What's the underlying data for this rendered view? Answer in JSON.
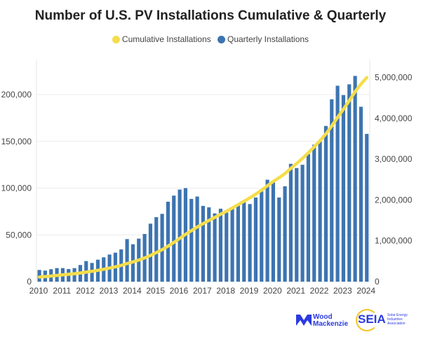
{
  "chart_data": {
    "type": "bar+line",
    "title": "Number of U.S. PV Installations Cumulative & Quarterly",
    "legend_position": "top",
    "grid": true,
    "x_tick_labels": [
      "2010",
      "2011",
      "2012",
      "2013",
      "2014",
      "2015",
      "2016",
      "2017",
      "2018",
      "2019",
      "2020",
      "2021",
      "2022",
      "2023",
      "2024"
    ],
    "quarters_start": "2010 Q1",
    "quarters_end": "2024 Q1",
    "left_axis": {
      "ylim": [
        0,
        237500
      ],
      "ticks": [
        0,
        50000,
        100000,
        150000,
        200000
      ],
      "tick_labels": [
        "0",
        "50,000",
        "100,000",
        "150,000",
        "200,000"
      ]
    },
    "right_axis": {
      "ylim": [
        0,
        5440000
      ],
      "ticks": [
        0,
        1000000,
        2000000,
        3000000,
        4000000,
        5000000
      ],
      "tick_labels": [
        "0",
        "1,000,000",
        "2,000,000",
        "3,000,000",
        "4,000,000",
        "5,000,000"
      ]
    },
    "series": [
      {
        "name": "Cumulative Installations",
        "type": "line",
        "axis": "right",
        "color": "#f5dd4b",
        "values": [
          112500,
          124300,
          137600,
          152100,
          166600,
          180100,
          194600,
          212400,
          234400,
          254400,
          277900,
          303900,
          332900,
          363900,
          398400,
          443900,
          483900,
          529900,
          580900,
          642900,
          711900,
          784400,
          869900,
          961900,
          1060400,
          1160400,
          1248900,
          1339900,
          1420900,
          1500400,
          1573400,
          1651400,
          1725400,
          1804400,
          1885900,
          1970900,
          2053900,
          2143900,
          2240400,
          2349400,
          2455900,
          2545900,
          2647900,
          2773900,
          2895400,
          3020400,
          3156900,
          3303400,
          3453400,
          3619900,
          3814900,
          4024400,
          4223900,
          4434900,
          4654900,
          4841900,
          4999900
        ]
      },
      {
        "name": "Quarterly Installations",
        "type": "bar",
        "axis": "left",
        "color": "#3d74b0",
        "values": [
          12500,
          11800,
          13300,
          14500,
          14500,
          13500,
          14500,
          17800,
          22000,
          20000,
          23500,
          26000,
          29000,
          31000,
          34500,
          45500,
          40000,
          46000,
          51000,
          62000,
          69000,
          72500,
          85500,
          92000,
          98500,
          100000,
          88500,
          91000,
          81000,
          79500,
          73000,
          78000,
          74000,
          79000,
          81500,
          85000,
          83000,
          90000,
          96500,
          109000,
          106500,
          90000,
          102000,
          126000,
          121500,
          125000,
          136500,
          146500,
          150000,
          166500,
          195000,
          209500,
          199500,
          211000,
          220000,
          187000,
          158000
        ]
      }
    ]
  },
  "logos": {
    "wood_mackenzie": "Wood Mackenzie",
    "seia": "SEIA",
    "seia_sub": "Solar Energy Industries Association"
  }
}
